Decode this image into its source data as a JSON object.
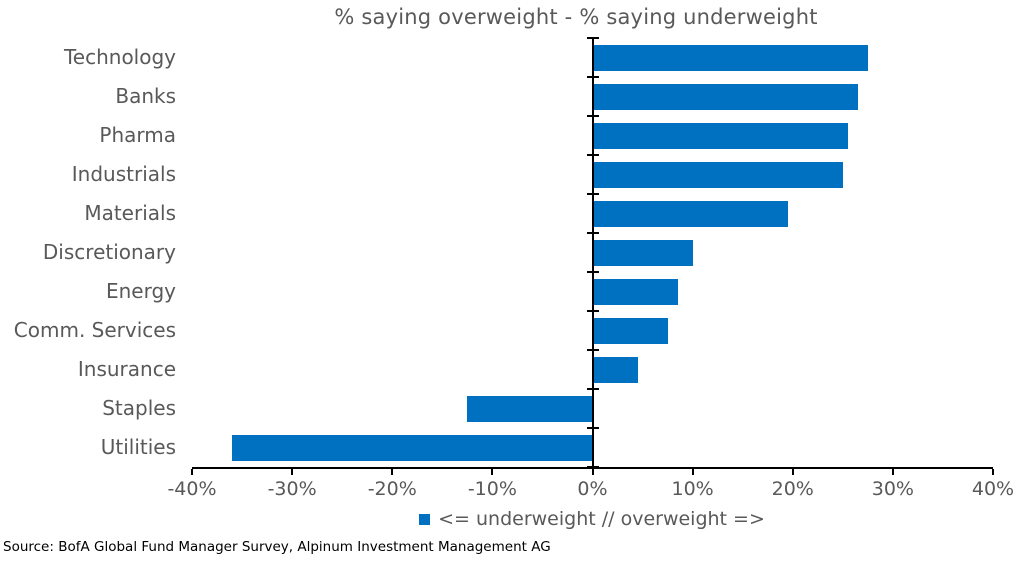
{
  "source": "Source: BofA Global Fund Manager Survey, Alpinum Investment Management AG",
  "colors": {
    "bar": "#0070C0",
    "text_gray": "#595959",
    "axis": "#000000",
    "background": "#ffffff"
  },
  "chart_data": {
    "type": "bar",
    "orientation": "horizontal",
    "title": "% saying overweight - % saying underweight",
    "categories": [
      "Technology",
      "Banks",
      "Pharma",
      "Industrials",
      "Materials",
      "Discretionary",
      "Energy",
      "Comm. Services",
      "Insurance",
      "Staples",
      "Utilities"
    ],
    "values": [
      27.5,
      26.5,
      25.5,
      25,
      19.5,
      10,
      8.5,
      7.5,
      4.5,
      -12.5,
      -36
    ],
    "unit": "%",
    "xlim": [
      -40,
      40
    ],
    "x_tick_values": [
      -40,
      -30,
      -20,
      -10,
      0,
      10,
      20,
      30,
      40
    ],
    "x_tick_labels": [
      "-40%",
      "-30%",
      "-20%",
      "-10%",
      "0%",
      "10%",
      "20%",
      "30%",
      "40%"
    ],
    "grid": false,
    "legend_position": "bottom-center",
    "legend": "<= underweight // overweight =>",
    "bar_color": "#0070C0"
  }
}
